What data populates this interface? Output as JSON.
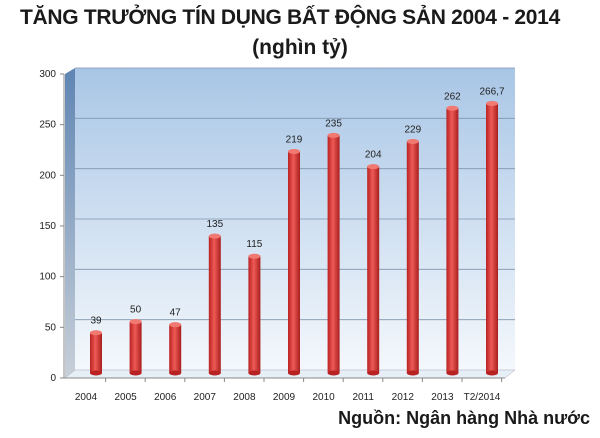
{
  "chart_data": {
    "type": "bar",
    "title": "TĂNG TRƯỞNG TÍN DỤNG BẤT ĐỘNG SẢN 2004 - 2014",
    "subtitle": "(nghìn tỷ)",
    "categories": [
      "2004",
      "2005",
      "2006",
      "2007",
      "2008",
      "2009",
      "2010",
      "2011",
      "2012",
      "2013",
      "T2/2014"
    ],
    "values": [
      39,
      50,
      47,
      135,
      115,
      219,
      235,
      204,
      229,
      262,
      266.7
    ],
    "data_labels": [
      "39",
      "50",
      "47",
      "135",
      "115",
      "219",
      "235",
      "204",
      "229",
      "262",
      "266,7"
    ],
    "yticks": [
      "0",
      "50",
      "100",
      "150",
      "200",
      "250",
      "300"
    ],
    "ylim": [
      0,
      300
    ],
    "xlabel": "",
    "ylabel": "",
    "grid": true,
    "bar_color": "#d93a3a",
    "source": "Nguồn: Ngân hàng Nhà nước"
  }
}
